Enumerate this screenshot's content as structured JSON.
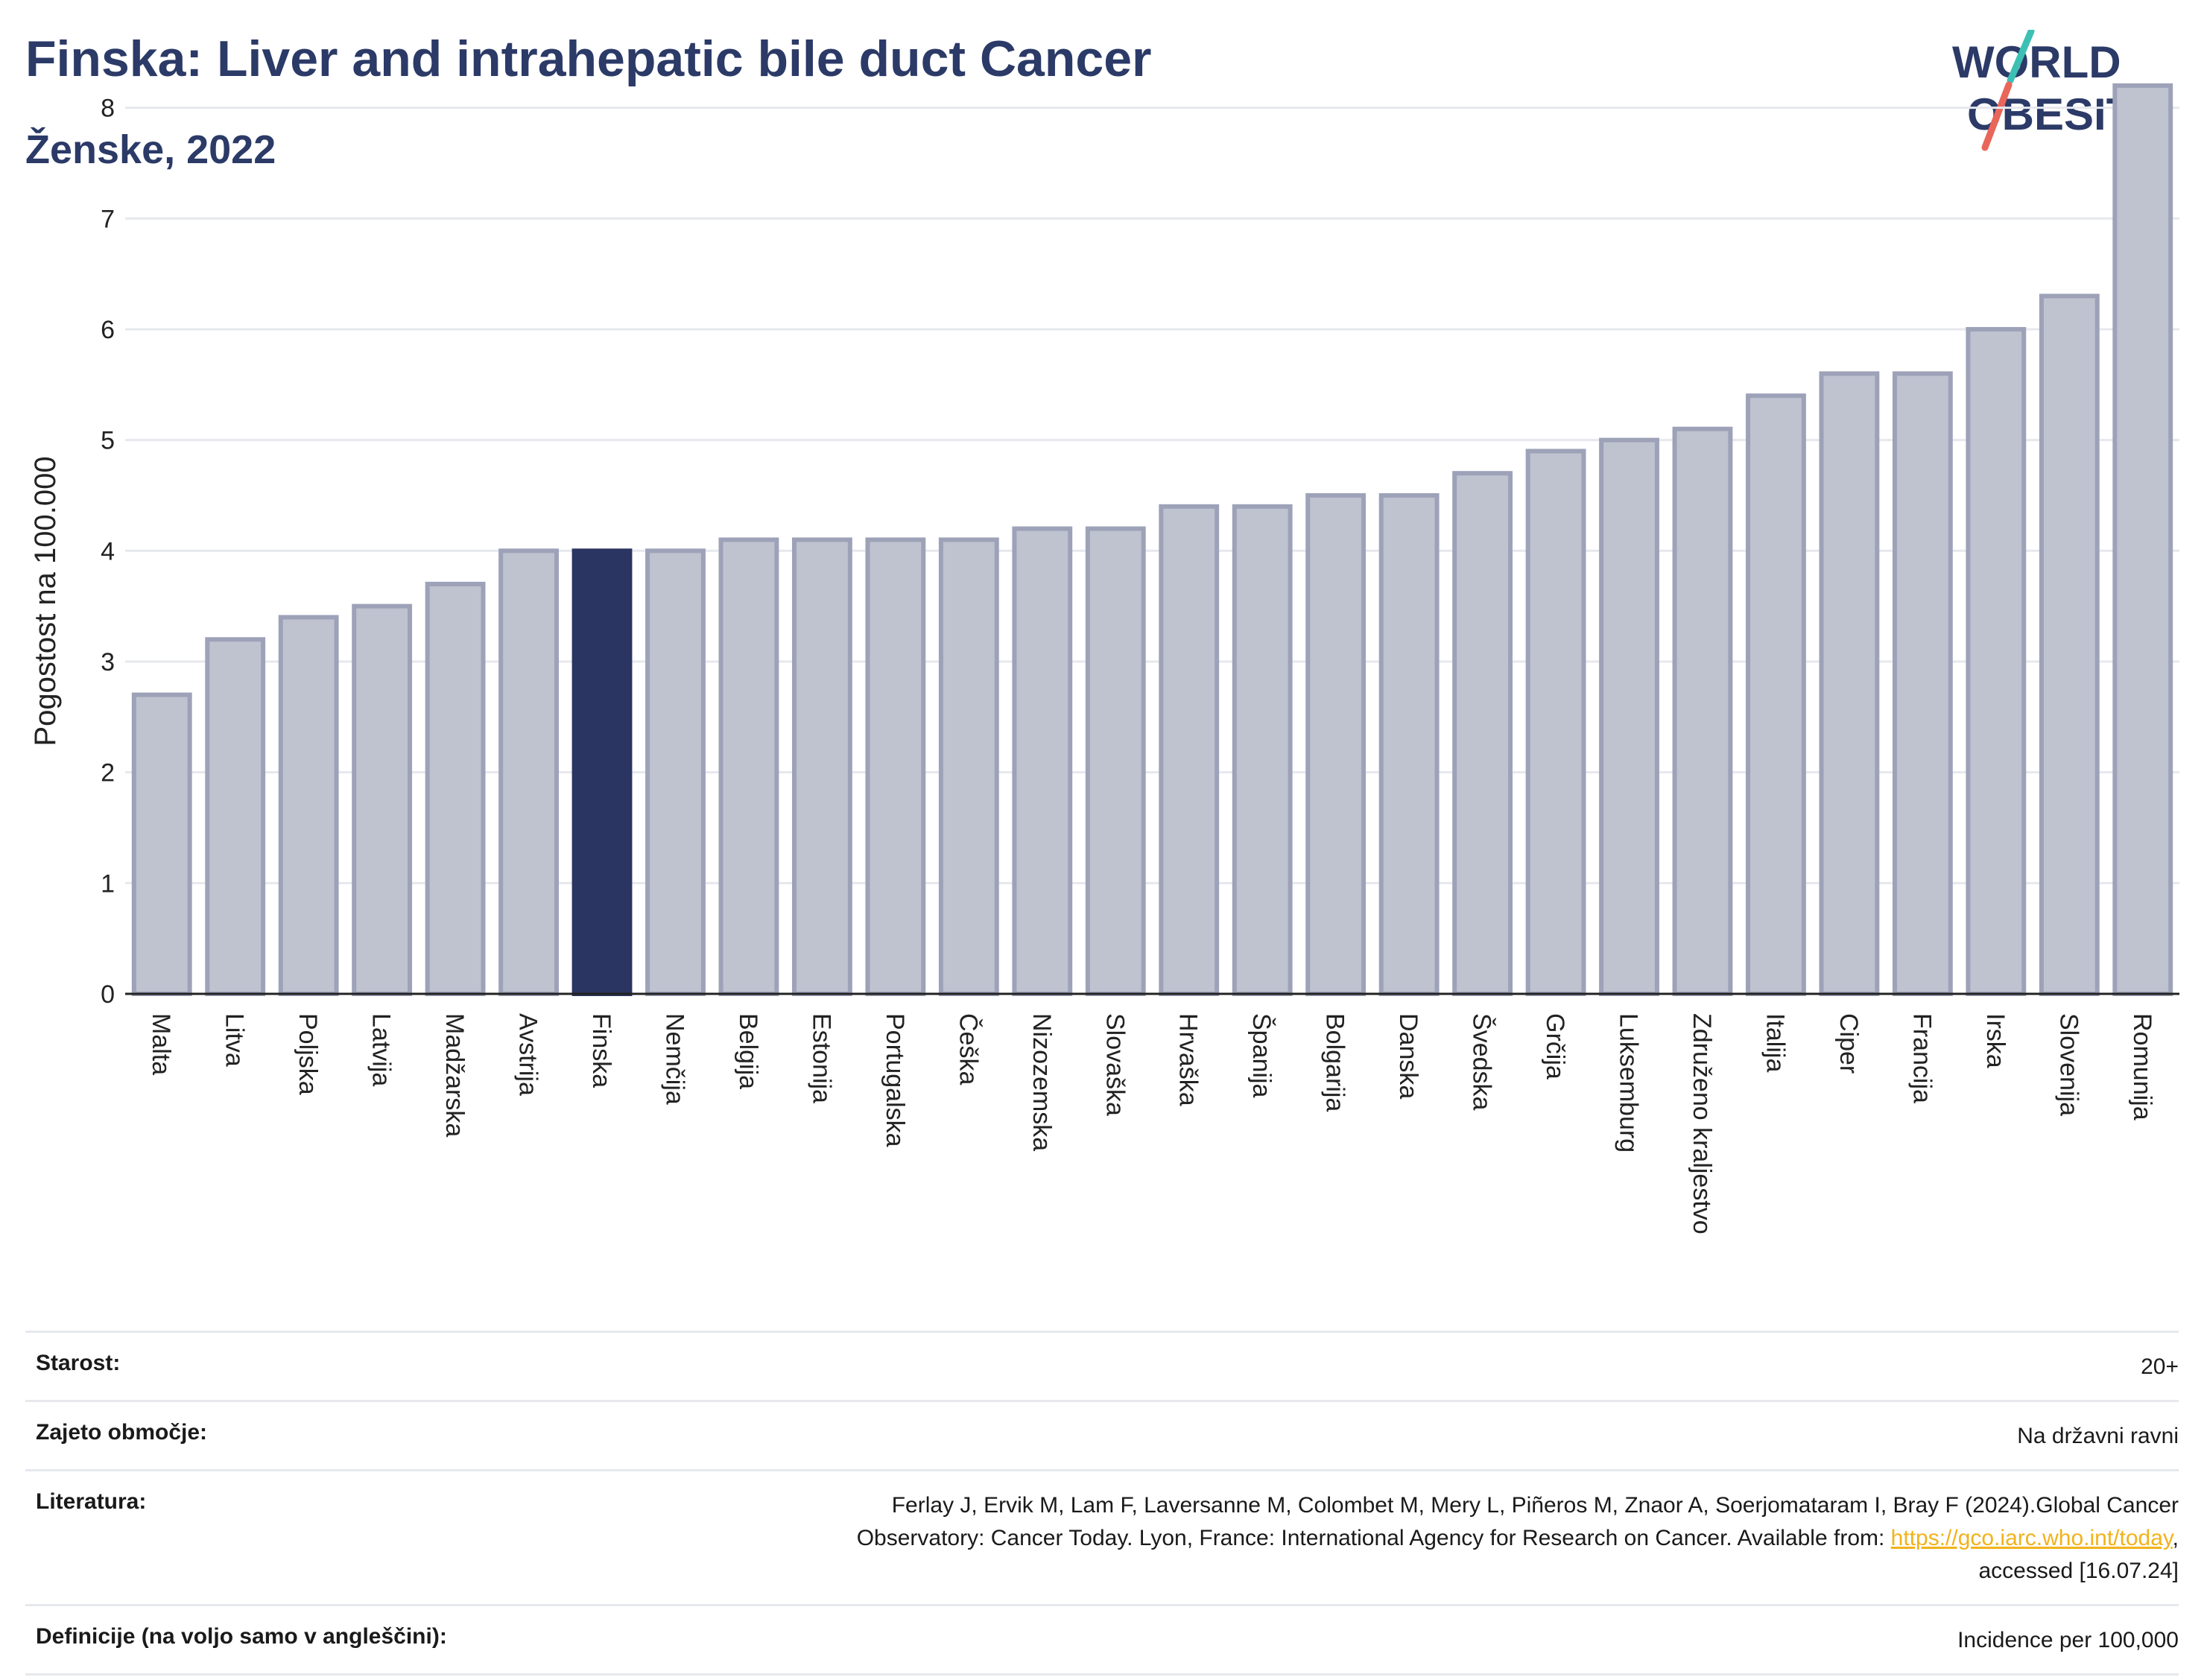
{
  "title": "Finska: Liver and intrahepatic bile duct Cancer",
  "subtitle": "Ženske, 2022",
  "logo": {
    "line1": "WORLD",
    "line2": "OBESITY",
    "icon": "world-obesity-logo"
  },
  "colors": {
    "highlight": "#2b3561",
    "bar": "#bfc2cf",
    "bar_stroke": "#9da2b8",
    "title": "#2b3a67",
    "link": "#f2b21b",
    "logo_teal": "#3cc0b4",
    "logo_red": "#e8665a"
  },
  "chart_data": {
    "type": "bar",
    "ylabel": "Pogostost na 100.000",
    "ylim": [
      0,
      8.3
    ],
    "yticks": [
      "0",
      "1",
      "2",
      "3",
      "4",
      "5",
      "6",
      "7",
      "8"
    ],
    "grid": true,
    "highlight": "Finska",
    "categories": [
      "Malta",
      "Litva",
      "Poljska",
      "Latvija",
      "Madžarska",
      "Avstrija",
      "Finska",
      "Nemčija",
      "Belgija",
      "Estonija",
      "Portugalska",
      "Češka",
      "Nizozemska",
      "Slovaška",
      "Hrvaška",
      "Španija",
      "Bolgarija",
      "Danska",
      "Švedska",
      "Grčija",
      "Luksemburg",
      "Združeno kraljestvo",
      "Italija",
      "Ciper",
      "Francija",
      "Irska",
      "Slovenija",
      "Romunija"
    ],
    "values": [
      2.7,
      3.2,
      3.4,
      3.5,
      3.7,
      4.0,
      4.0,
      4.0,
      4.1,
      4.1,
      4.1,
      4.1,
      4.2,
      4.2,
      4.4,
      4.4,
      4.5,
      4.5,
      4.7,
      4.9,
      5.0,
      5.1,
      5.4,
      5.6,
      5.6,
      6.0,
      6.3,
      8.2
    ]
  },
  "info": {
    "age_label": "Starost:",
    "age_value": "20+",
    "coverage_label": "Zajeto območje:",
    "coverage_value": "Na državni ravni",
    "ref_label": "Literatura:",
    "ref_text_1": "Ferlay J, Ervik M, Lam F, Laversanne M, Colombet M, Mery L, Piñeros M, Znaor A, Soerjomataram I, Bray F (2024).Global Cancer",
    "ref_text_2": "Observatory: Cancer Today. Lyon, France: International Agency for Research on Cancer. Available from: ",
    "ref_link": "https://gco.iarc.who.int/today",
    "ref_text_3": ",",
    "ref_text_4": "accessed [16.07.24]",
    "def_label": "Definicije (na voljo samo v angleščini):",
    "def_value": "Incidence per 100,000"
  }
}
